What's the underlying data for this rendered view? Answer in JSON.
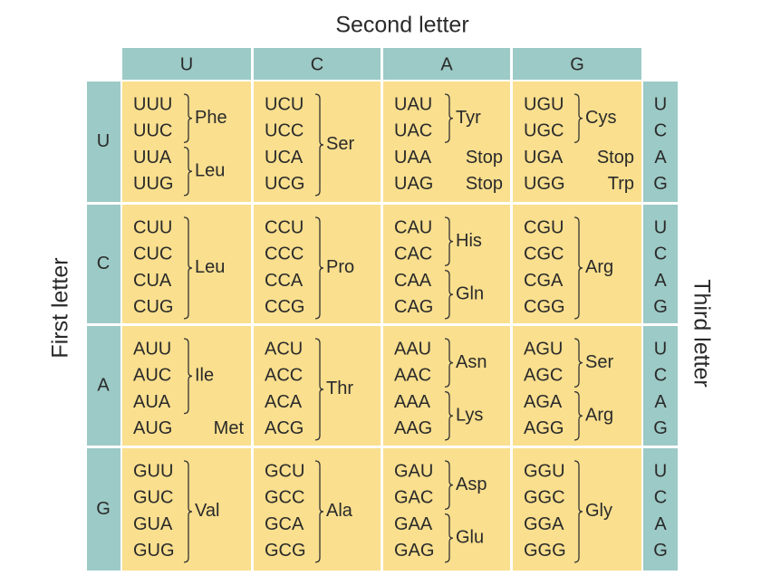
{
  "second_letter": {
    "label": "Second letter",
    "letters": [
      "U",
      "C",
      "A",
      "G"
    ]
  },
  "first_letter": {
    "label": "First letter",
    "letters": [
      "U",
      "C",
      "A",
      "G"
    ]
  },
  "third_letter": {
    "label": "Third letter",
    "letters": [
      "U",
      "C",
      "A",
      "G"
    ]
  },
  "rows": [
    {
      "cells": [
        [
          {
            "codons": [
              "UUU",
              "UUC"
            ],
            "amino_acid": "Phe"
          },
          {
            "codons": [
              "UUA",
              "UUG"
            ],
            "amino_acid": "Leu"
          }
        ],
        [
          {
            "codons": [
              "UCU",
              "UCC",
              "UCA",
              "UCG"
            ],
            "amino_acid": "Ser"
          }
        ],
        [
          {
            "codons": [
              "UAU",
              "UAC"
            ],
            "amino_acid": "Tyr"
          },
          {
            "codons": [
              "UAA"
            ],
            "amino_acid": "Stop"
          },
          {
            "codons": [
              "UAG"
            ],
            "amino_acid": "Stop"
          }
        ],
        [
          {
            "codons": [
              "UGU",
              "UGC"
            ],
            "amino_acid": "Cys"
          },
          {
            "codons": [
              "UGA"
            ],
            "amino_acid": "Stop"
          },
          {
            "codons": [
              "UGG"
            ],
            "amino_acid": "Trp"
          }
        ]
      ]
    },
    {
      "cells": [
        [
          {
            "codons": [
              "CUU",
              "CUC",
              "CUA",
              "CUG"
            ],
            "amino_acid": "Leu"
          }
        ],
        [
          {
            "codons": [
              "CCU",
              "CCC",
              "CCA",
              "CCG"
            ],
            "amino_acid": "Pro"
          }
        ],
        [
          {
            "codons": [
              "CAU",
              "CAC"
            ],
            "amino_acid": "His"
          },
          {
            "codons": [
              "CAA",
              "CAG"
            ],
            "amino_acid": "Gln"
          }
        ],
        [
          {
            "codons": [
              "CGU",
              "CGC",
              "CGA",
              "CGG"
            ],
            "amino_acid": "Arg"
          }
        ]
      ]
    },
    {
      "cells": [
        [
          {
            "codons": [
              "AUU",
              "AUC",
              "AUA"
            ],
            "amino_acid": "Ile"
          },
          {
            "codons": [
              "AUG"
            ],
            "amino_acid": "Met"
          }
        ],
        [
          {
            "codons": [
              "ACU",
              "ACC",
              "ACA",
              "ACG"
            ],
            "amino_acid": "Thr"
          }
        ],
        [
          {
            "codons": [
              "AAU",
              "AAC"
            ],
            "amino_acid": "Asn"
          },
          {
            "codons": [
              "AAA",
              "AAG"
            ],
            "amino_acid": "Lys"
          }
        ],
        [
          {
            "codons": [
              "AGU",
              "AGC"
            ],
            "amino_acid": "Ser"
          },
          {
            "codons": [
              "AGA",
              "AGG"
            ],
            "amino_acid": "Arg"
          }
        ]
      ]
    },
    {
      "cells": [
        [
          {
            "codons": [
              "GUU",
              "GUC",
              "GUA",
              "GUG"
            ],
            "amino_acid": "Val"
          }
        ],
        [
          {
            "codons": [
              "GCU",
              "GCC",
              "GCA",
              "GCG"
            ],
            "amino_acid": "Ala"
          }
        ],
        [
          {
            "codons": [
              "GAU",
              "GAC"
            ],
            "amino_acid": "Asp"
          },
          {
            "codons": [
              "GAA",
              "GAG"
            ],
            "amino_acid": "Glu"
          }
        ],
        [
          {
            "codons": [
              "GGU",
              "GGC",
              "GGA",
              "GGG"
            ],
            "amino_acid": "Gly"
          }
        ]
      ]
    }
  ]
}
